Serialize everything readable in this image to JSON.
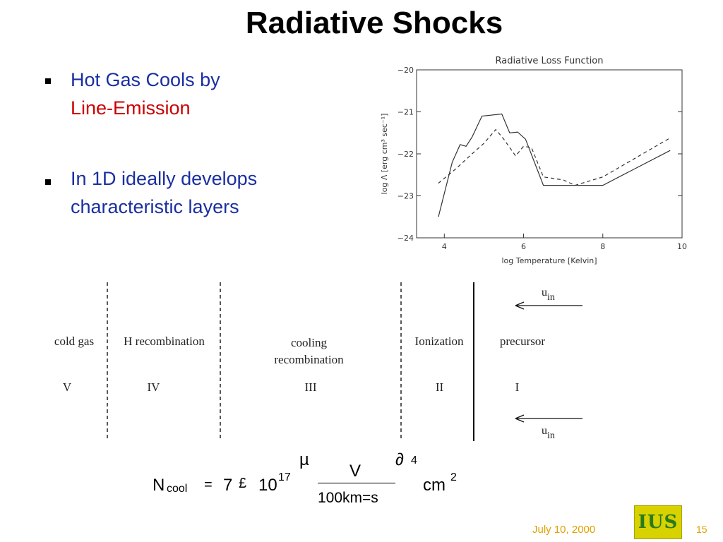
{
  "slide": {
    "title": "Radiative Shocks",
    "bullets": [
      {
        "line1": "Hot Gas Cools by",
        "line2": "Line-Emission"
      },
      {
        "line1": "In 1D  ideally develops",
        "line2": "characteristic layers"
      }
    ],
    "date": "July 10, 2000",
    "page_number": "15",
    "logo_text": "IUS"
  },
  "chart_data": {
    "type": "line",
    "title": "Radiative Loss Function",
    "xlabel": "log Temperature [Kelvin]",
    "ylabel": "log  Λ  [erg cm³  sec⁻¹]",
    "xlim": [
      3.3,
      10
    ],
    "ylim": [
      -24,
      -20
    ],
    "xticks": [
      4,
      6,
      8,
      10
    ],
    "yticks": [
      -20,
      -21,
      -22,
      -23,
      -24
    ],
    "grid": false,
    "series": [
      {
        "style": "solid",
        "x": [
          3.85,
          4.2,
          4.4,
          4.55,
          4.7,
          4.95,
          5.45,
          5.65,
          5.85,
          6.05,
          6.5,
          7.5,
          8.0,
          9.7
        ],
        "y": [
          -23.5,
          -22.2,
          -21.78,
          -21.82,
          -21.6,
          -21.1,
          -21.05,
          -21.5,
          -21.48,
          -21.65,
          -22.75,
          -22.75,
          -22.75,
          -21.92
        ]
      },
      {
        "style": "dashed",
        "x": [
          3.85,
          4.3,
          4.7,
          5.0,
          5.3,
          5.5,
          5.8,
          6.0,
          6.2,
          6.5,
          7.0,
          7.3,
          8.0,
          9.7
        ],
        "y": [
          -22.7,
          -22.35,
          -22.0,
          -21.75,
          -21.42,
          -21.65,
          -22.05,
          -21.82,
          -21.85,
          -22.55,
          -22.62,
          -22.75,
          -22.55,
          -21.62
        ]
      }
    ]
  },
  "diagram": {
    "velocity_label": "u",
    "velocity_sub": "in",
    "layers": [
      {
        "name": "cold gas",
        "numeral": "V"
      },
      {
        "name": "H recombination",
        "numeral": "IV"
      },
      {
        "name": "cooling\nrecombination",
        "numeral": "III"
      },
      {
        "name": "Ionization",
        "numeral": "II"
      },
      {
        "name": "precursor",
        "numeral": "I"
      }
    ]
  },
  "equation": {
    "lhs": "N",
    "lhs_sub": "cool",
    "equals": "=",
    "coef": "7",
    "times": "£",
    "base": "10",
    "exponent": "17",
    "open_paren": "µ",
    "close_paren": "∂",
    "power": "4",
    "numerator": "V",
    "denominator": "100km=s",
    "unit": "cm",
    "unit_exp": "2"
  }
}
